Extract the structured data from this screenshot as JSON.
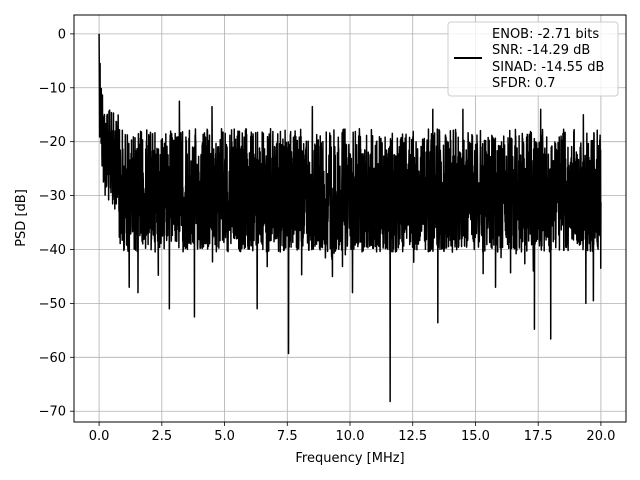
{
  "chart_data": {
    "type": "line",
    "xlabel": "Frequency [MHz]",
    "ylabel": "PSD [dB]",
    "xlim": [
      -1.0,
      21.0
    ],
    "ylim": [
      -72.0,
      3.5
    ],
    "x_ticks": [
      0.0,
      2.5,
      5.0,
      7.5,
      10.0,
      12.5,
      15.0,
      17.5,
      20.0
    ],
    "x_tick_labels": [
      "0.0",
      "2.5",
      "5.0",
      "7.5",
      "10.0",
      "12.5",
      "15.0",
      "17.5",
      "20.0"
    ],
    "y_ticks": [
      0,
      -10,
      -20,
      -30,
      -40,
      -50,
      -60,
      -70
    ],
    "y_tick_labels": [
      "0",
      "−10",
      "−20",
      "−30",
      "−40",
      "−50",
      "−60",
      "−70"
    ],
    "grid": true,
    "legend_position": "top-right",
    "line_color": "#000000",
    "series": [
      {
        "name": "ENOB: -2.71 bits\nSNR: -14.29 dB\nSINAD: -14.55 dB\nSFDR: 0.7",
        "legend_lines": [
          "ENOB: -2.71 bits",
          "SNR: -14.29 dB",
          "SINAD: -14.55 dB",
          "SFDR: 0.7"
        ],
        "x_range": [
          0.0,
          20.0
        ],
        "peak": {
          "x": 0.0,
          "y": 0.0
        },
        "start_rolloff_envelope": [
          [
            0.0,
            0.0
          ],
          [
            0.05,
            -3
          ],
          [
            0.1,
            -8
          ],
          [
            0.2,
            -12
          ],
          [
            0.4,
            -14
          ],
          [
            0.8,
            -15
          ]
        ],
        "noise_floor_typical": [
          -38,
          -17
        ],
        "notable_minima": [
          {
            "x": 1.2,
            "y": -47
          },
          {
            "x": 1.55,
            "y": -48
          },
          {
            "x": 2.8,
            "y": -51
          },
          {
            "x": 3.8,
            "y": -52.5
          },
          {
            "x": 6.3,
            "y": -51
          },
          {
            "x": 7.55,
            "y": -59.3
          },
          {
            "x": 9.3,
            "y": -45
          },
          {
            "x": 10.1,
            "y": -48
          },
          {
            "x": 11.6,
            "y": -68.2
          },
          {
            "x": 13.5,
            "y": -53.6
          },
          {
            "x": 15.8,
            "y": -47
          },
          {
            "x": 17.35,
            "y": -54.8
          },
          {
            "x": 18.0,
            "y": -56.6
          },
          {
            "x": 19.4,
            "y": -50
          },
          {
            "x": 19.7,
            "y": -49.5
          }
        ],
        "notable_maxima": [
          {
            "x": 3.2,
            "y": -12.5
          },
          {
            "x": 4.5,
            "y": -13.5
          },
          {
            "x": 8.5,
            "y": -13.5
          },
          {
            "x": 13.3,
            "y": -14
          },
          {
            "x": 14.5,
            "y": -14
          },
          {
            "x": 17.6,
            "y": -14
          },
          {
            "x": 19.3,
            "y": -15
          }
        ]
      }
    ]
  }
}
